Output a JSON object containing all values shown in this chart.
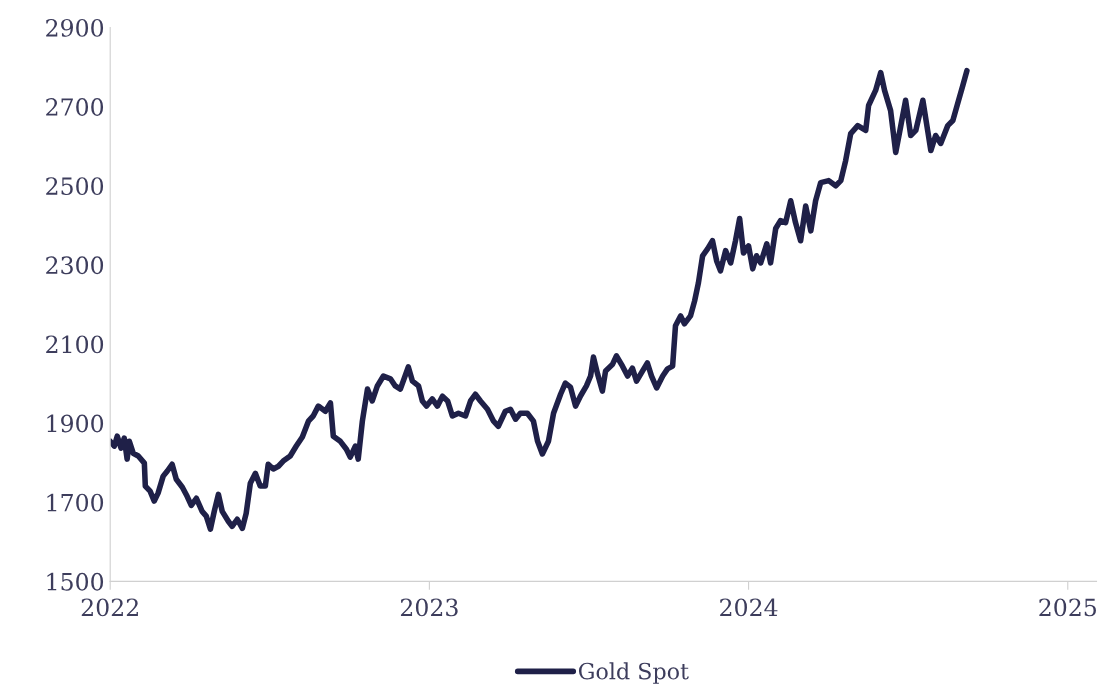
{
  "chart_data": {
    "type": "line",
    "xlim": [
      2022,
      2025.09
    ],
    "xticks": [
      2022,
      2023,
      2024,
      2025
    ],
    "ylim": [
      1500,
      2900
    ],
    "yticks": [
      1500,
      1700,
      1900,
      2100,
      2300,
      2500,
      2700,
      2900
    ],
    "grid": false,
    "legend": "bottom",
    "marker": "none",
    "line_style": "solid",
    "series": [
      {
        "name": "Gold Spot",
        "color": "#1f2048",
        "x": [
          2022.0,
          2022.013,
          2022.022,
          2022.034,
          2022.044,
          2022.053,
          2022.06,
          2022.072,
          2022.088,
          2022.107,
          2022.11,
          2022.125,
          2022.138,
          2022.15,
          2022.166,
          2022.179,
          2022.194,
          2022.207,
          2022.226,
          2022.241,
          2022.254,
          2022.27,
          2022.288,
          2022.301,
          2022.314,
          2022.326,
          2022.339,
          2022.351,
          2022.37,
          2022.382,
          2022.398,
          2022.414,
          2022.426,
          2022.439,
          2022.455,
          2022.47,
          2022.486,
          2022.495,
          2022.511,
          2022.527,
          2022.542,
          2022.564,
          2022.583,
          2022.602,
          2022.621,
          2022.636,
          2022.652,
          2022.674,
          2022.69,
          2022.699,
          2022.721,
          2022.74,
          2022.752,
          2022.768,
          2022.777,
          2022.79,
          2022.806,
          2022.821,
          2022.837,
          2022.856,
          2022.878,
          2022.893,
          2022.909,
          2022.934,
          2022.947,
          2022.966,
          2022.978,
          2022.991,
          2023.009,
          2023.025,
          2023.041,
          2023.057,
          2023.072,
          2023.091,
          2023.113,
          2023.129,
          2023.144,
          2023.16,
          2023.182,
          2023.201,
          2023.216,
          2023.238,
          2023.254,
          2023.27,
          2023.285,
          2023.307,
          2023.326,
          2023.339,
          2023.354,
          2023.373,
          2023.389,
          2023.411,
          2023.426,
          2023.442,
          2023.458,
          2023.473,
          2023.492,
          2023.505,
          2023.514,
          2023.527,
          2023.542,
          2023.552,
          2023.574,
          2023.586,
          2023.605,
          2023.621,
          2023.636,
          2023.649,
          2023.668,
          2023.683,
          2023.696,
          2023.712,
          2023.731,
          2023.746,
          2023.762,
          2023.771,
          2023.787,
          2023.799,
          2023.818,
          2023.831,
          2023.843,
          2023.856,
          2023.872,
          2023.887,
          2023.9,
          2023.912,
          2023.928,
          2023.944,
          2023.959,
          2023.972,
          2023.984,
          2024.0,
          2024.013,
          2024.025,
          2024.038,
          2024.057,
          2024.069,
          2024.085,
          2024.1,
          2024.116,
          2024.132,
          2024.147,
          2024.163,
          2024.179,
          2024.195,
          2024.21,
          2024.226,
          2024.251,
          2024.273,
          2024.289,
          2024.304,
          2024.32,
          2024.342,
          2024.367,
          2024.376,
          2024.398,
          2024.414,
          2024.426,
          2024.445,
          2024.461,
          2024.477,
          2024.492,
          2024.508,
          2024.524,
          2024.546,
          2024.561,
          2024.571,
          2024.586,
          2024.602,
          2024.624,
          2024.64,
          2024.658,
          2024.671,
          2024.684
        ],
        "values": [
          1854,
          1842,
          1867,
          1837,
          1862,
          1809,
          1854,
          1824,
          1817,
          1799,
          1741,
          1728,
          1703,
          1723,
          1766,
          1779,
          1796,
          1758,
          1738,
          1715,
          1692,
          1710,
          1677,
          1665,
          1632,
          1677,
          1720,
          1677,
          1652,
          1639,
          1657,
          1634,
          1672,
          1748,
          1773,
          1741,
          1741,
          1796,
          1784,
          1791,
          1804,
          1817,
          1842,
          1865,
          1905,
          1918,
          1943,
          1930,
          1951,
          1867,
          1854,
          1834,
          1814,
          1842,
          1809,
          1905,
          1986,
          1956,
          1994,
          2019,
          2012,
          1994,
          1986,
          2042,
          2006,
          1994,
          1956,
          1943,
          1961,
          1943,
          1968,
          1956,
          1918,
          1925,
          1918,
          1956,
          1973,
          1956,
          1935,
          1905,
          1892,
          1930,
          1935,
          1910,
          1925,
          1925,
          1905,
          1854,
          1822,
          1854,
          1925,
          1973,
          2001,
          1991,
          1943,
          1968,
          1994,
          2019,
          2067,
          2024,
          1981,
          2032,
          2049,
          2070,
          2044,
          2019,
          2039,
          2006,
          2032,
          2052,
          2019,
          1989,
          2019,
          2037,
          2044,
          2146,
          2171,
          2151,
          2171,
          2209,
          2255,
          2323,
          2341,
          2361,
          2310,
          2285,
          2336,
          2305,
          2361,
          2417,
          2330,
          2348,
          2290,
          2323,
          2305,
          2353,
          2305,
          2392,
          2412,
          2407,
          2462,
          2407,
          2361,
          2449,
          2386,
          2462,
          2508,
          2513,
          2500,
          2513,
          2563,
          2632,
          2652,
          2640,
          2703,
          2741,
          2786,
          2741,
          2690,
          2584,
          2652,
          2716,
          2627,
          2640,
          2716,
          2640,
          2589,
          2627,
          2607,
          2652,
          2665,
          2716,
          2753,
          2791
        ]
      }
    ]
  }
}
